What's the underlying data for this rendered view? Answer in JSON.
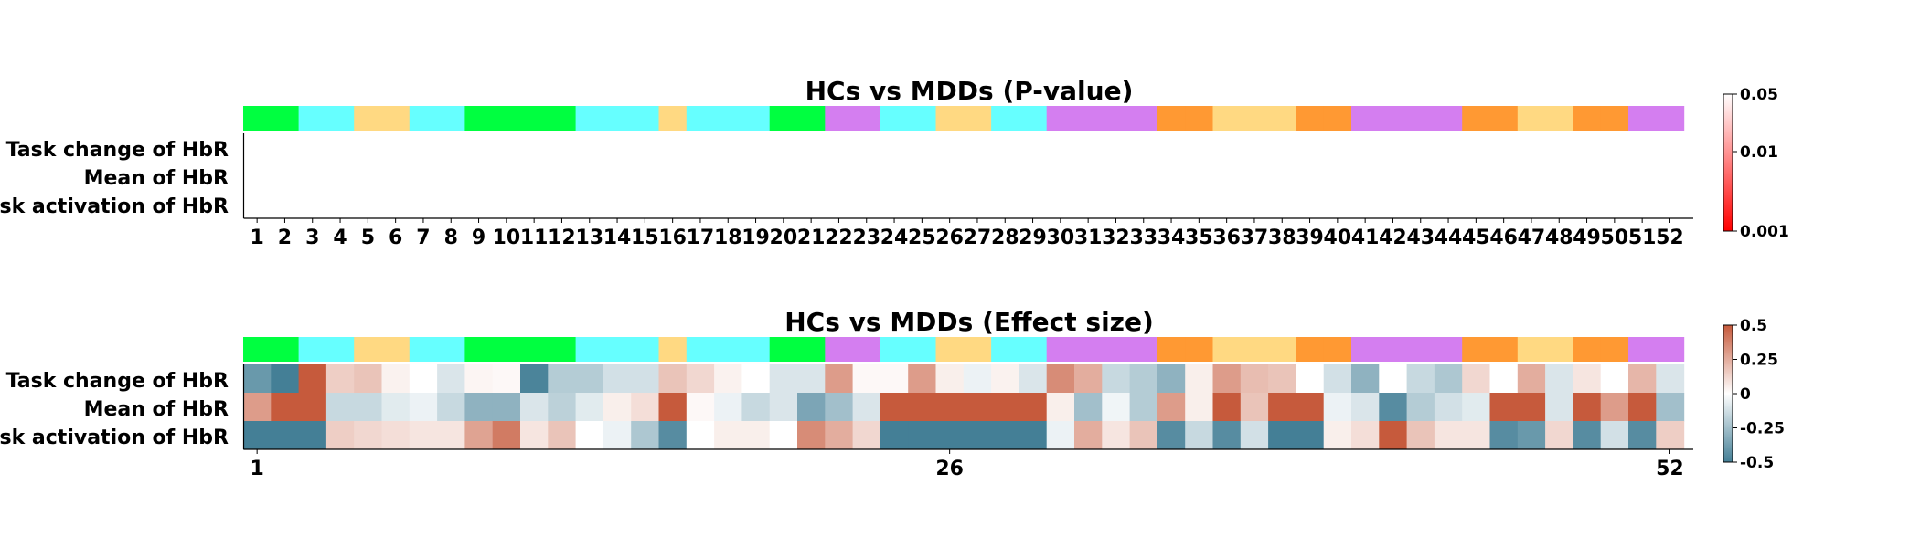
{
  "region_colors": {
    "green": "#00ff40",
    "cyan": "#66ffff",
    "yellow": "#ffd982",
    "purple": "#d47ef0",
    "orange": "#ff9933"
  },
  "region_strip": [
    "green",
    "green",
    "cyan",
    "cyan",
    "yellow",
    "yellow",
    "cyan",
    "cyan",
    "green",
    "green",
    "green",
    "green",
    "cyan",
    "cyan",
    "cyan",
    "yellow",
    "cyan",
    "cyan",
    "cyan",
    "green",
    "green",
    "purple",
    "purple",
    "cyan",
    "cyan",
    "yellow",
    "yellow",
    "cyan",
    "cyan",
    "purple",
    "purple",
    "purple",
    "purple",
    "orange",
    "orange",
    "yellow",
    "yellow",
    "yellow",
    "orange",
    "orange",
    "purple",
    "purple",
    "purple",
    "purple",
    "orange",
    "orange",
    "yellow",
    "yellow",
    "orange",
    "orange",
    "purple",
    "purple"
  ],
  "chart_data": [
    {
      "type": "heatmap",
      "title": "HCs vs MDDs (P-value)",
      "rows": [
        "Task change of HbR",
        "Mean of HbR",
        "Task activation of HbR"
      ],
      "columns": [
        "1",
        "2",
        "3",
        "4",
        "5",
        "6",
        "7",
        "8",
        "9",
        "10",
        "11",
        "12",
        "13",
        "14",
        "15",
        "16",
        "17",
        "18",
        "19",
        "20",
        "21",
        "22",
        "23",
        "24",
        "25",
        "26",
        "27",
        "28",
        "29",
        "30",
        "31",
        "32",
        "33",
        "34",
        "35",
        "36",
        "37",
        "38",
        "39",
        "40",
        "41",
        "42",
        "43",
        "44",
        "45",
        "46",
        "47",
        "48",
        "49",
        "50",
        "51",
        "52"
      ],
      "xticks": [
        "1",
        "2",
        "3",
        "4",
        "5",
        "6",
        "7",
        "8",
        "9",
        "10",
        "11",
        "12",
        "13",
        "14",
        "15",
        "16",
        "17",
        "18",
        "19",
        "20",
        "21",
        "22",
        "23",
        "24",
        "25",
        "26",
        "27",
        "28",
        "29",
        "30",
        "31",
        "32",
        "33",
        "34",
        "35",
        "36",
        "37",
        "38",
        "39",
        "40",
        "41",
        "42",
        "43",
        "44",
        "45",
        "46",
        "47",
        "48",
        "49",
        "50",
        "51",
        "52"
      ],
      "colorbar": {
        "scale": "log",
        "min": 0.001,
        "max": 0.05,
        "ticks": [
          "0.05",
          "0.01",
          "0.001"
        ],
        "colors": [
          "#ff0000",
          "#ffffff"
        ]
      },
      "values": [
        [
          0.5,
          0.5,
          0.5,
          0.5,
          0.5,
          0.5,
          0.5,
          0.5,
          0.5,
          0.5,
          0.5,
          0.5,
          0.5,
          0.5,
          0.5,
          0.5,
          0.5,
          0.5,
          0.5,
          0.5,
          0.5,
          0.5,
          0.5,
          0.5,
          0.5,
          0.5,
          0.5,
          0.5,
          0.5,
          0.5,
          0.5,
          0.5,
          0.5,
          0.5,
          0.5,
          0.5,
          0.5,
          0.5,
          0.5,
          0.5,
          0.5,
          0.5,
          0.5,
          0.5,
          0.5,
          0.5,
          0.5,
          0.5,
          0.5,
          0.5,
          0.5,
          0.5
        ],
        [
          0.5,
          0.5,
          0.5,
          0.5,
          0.5,
          0.5,
          0.5,
          0.5,
          0.5,
          0.5,
          0.5,
          0.5,
          0.5,
          0.5,
          0.5,
          0.5,
          0.5,
          0.5,
          0.5,
          0.5,
          0.5,
          0.5,
          0.5,
          0.5,
          0.5,
          0.5,
          0.5,
          0.5,
          0.5,
          0.5,
          0.5,
          0.5,
          0.5,
          0.5,
          0.5,
          0.5,
          0.5,
          0.5,
          0.5,
          0.5,
          0.5,
          0.5,
          0.5,
          0.5,
          0.5,
          0.5,
          0.5,
          0.5,
          0.5,
          0.5,
          0.5,
          0.5
        ],
        [
          0.5,
          0.5,
          0.5,
          0.5,
          0.5,
          0.5,
          0.5,
          0.5,
          0.5,
          0.5,
          0.5,
          0.5,
          0.5,
          0.5,
          0.5,
          0.5,
          0.5,
          0.5,
          0.5,
          0.5,
          0.5,
          0.5,
          0.5,
          0.5,
          0.5,
          0.5,
          0.5,
          0.5,
          0.5,
          0.5,
          0.5,
          0.5,
          0.5,
          0.5,
          0.5,
          0.5,
          0.5,
          0.5,
          0.5,
          0.5,
          0.5,
          0.5,
          0.5,
          0.5,
          0.5,
          0.5,
          0.5,
          0.5,
          0.5,
          0.5,
          0.5,
          0.5
        ]
      ]
    },
    {
      "type": "heatmap",
      "title": "HCs vs MDDs (Effect size)",
      "rows": [
        "Task change of HbR",
        "Mean of HbR",
        "Task activation of HbR"
      ],
      "columns": [
        "1",
        "2",
        "3",
        "4",
        "5",
        "6",
        "7",
        "8",
        "9",
        "10",
        "11",
        "12",
        "13",
        "14",
        "15",
        "16",
        "17",
        "18",
        "19",
        "20",
        "21",
        "22",
        "23",
        "24",
        "25",
        "26",
        "27",
        "28",
        "29",
        "30",
        "31",
        "32",
        "33",
        "34",
        "35",
        "36",
        "37",
        "38",
        "39",
        "40",
        "41",
        "42",
        "43",
        "44",
        "45",
        "46",
        "47",
        "48",
        "49",
        "50",
        "51",
        "52"
      ],
      "xticks": [
        "1",
        "26",
        "52"
      ],
      "colorbar": {
        "min": -0.5,
        "max": 0.5,
        "ticks": [
          "0.5",
          "0.25",
          "0",
          "-0.25",
          "-0.5"
        ],
        "colors": [
          "#447f96",
          "#ffffff",
          "#c65a3c"
        ]
      },
      "values": [
        [
          -0.4,
          -0.5,
          0.5,
          0.15,
          0.18,
          0.04,
          0.0,
          -0.1,
          0.03,
          0.02,
          -0.48,
          -0.2,
          -0.2,
          -0.12,
          -0.12,
          0.18,
          0.12,
          0.04,
          0.0,
          -0.1,
          -0.1,
          0.3,
          0.02,
          0.02,
          0.3,
          0.05,
          -0.05,
          0.04,
          -0.1,
          0.35,
          0.25,
          -0.15,
          -0.2,
          -0.3,
          0.05,
          0.3,
          0.2,
          0.18,
          0.0,
          -0.12,
          -0.3,
          0.0,
          -0.15,
          -0.22,
          0.12,
          0.0,
          0.25,
          -0.1,
          0.08,
          0.0,
          0.22,
          -0.1
        ],
        [
          0.3,
          0.5,
          0.5,
          -0.15,
          -0.15,
          -0.08,
          -0.05,
          -0.15,
          -0.3,
          -0.3,
          -0.1,
          -0.18,
          -0.08,
          0.05,
          0.1,
          0.5,
          0.02,
          -0.05,
          -0.15,
          -0.1,
          -0.35,
          -0.25,
          -0.1,
          0.5,
          0.5,
          0.5,
          0.5,
          0.5,
          0.5,
          0.05,
          -0.25,
          -0.04,
          -0.2,
          0.3,
          0.05,
          0.5,
          0.18,
          0.5,
          0.5,
          -0.05,
          -0.1,
          -0.45,
          -0.2,
          -0.12,
          -0.08,
          0.5,
          0.5,
          -0.1,
          0.5,
          0.3,
          0.5,
          -0.25
        ],
        [
          -0.5,
          -0.5,
          -0.5,
          0.15,
          0.12,
          0.1,
          0.08,
          0.08,
          0.28,
          0.4,
          0.08,
          0.18,
          0.0,
          -0.05,
          -0.22,
          -0.45,
          0.0,
          0.05,
          0.05,
          0.0,
          0.35,
          0.25,
          0.12,
          -0.5,
          -0.5,
          -0.5,
          -0.5,
          -0.5,
          -0.5,
          -0.05,
          0.25,
          0.08,
          0.18,
          -0.45,
          -0.15,
          -0.45,
          -0.12,
          -0.5,
          -0.5,
          0.05,
          0.1,
          0.5,
          0.18,
          0.08,
          0.08,
          -0.45,
          -0.4,
          0.12,
          -0.45,
          -0.12,
          -0.45,
          0.15
        ]
      ]
    }
  ]
}
